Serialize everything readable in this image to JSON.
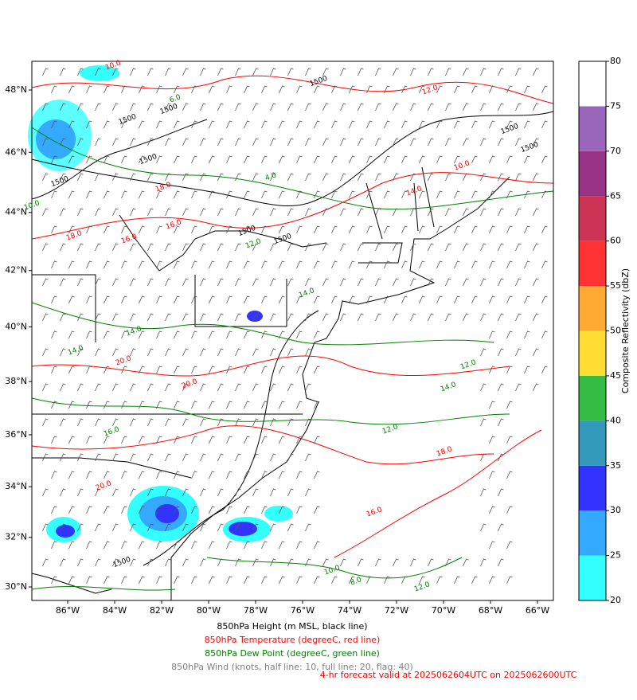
{
  "map": {
    "lon_ticks": [
      {
        "value": -86,
        "label": "86°W"
      },
      {
        "value": -84,
        "label": "84°W"
      },
      {
        "value": -82,
        "label": "82°W"
      },
      {
        "value": -80,
        "label": "80°W"
      },
      {
        "value": -78,
        "label": "78°W"
      },
      {
        "value": -76,
        "label": "76°W"
      },
      {
        "value": -74,
        "label": "74°W"
      },
      {
        "value": -72,
        "label": "72°W"
      },
      {
        "value": -70,
        "label": "70°W"
      },
      {
        "value": -68,
        "label": "68°W"
      },
      {
        "value": -66,
        "label": "66°W"
      }
    ],
    "lat_ticks": [
      {
        "value": 48,
        "label": "48°N"
      },
      {
        "value": 46,
        "label": "46°N"
      },
      {
        "value": 44,
        "label": "44°N"
      },
      {
        "value": 42,
        "label": "42°N"
      },
      {
        "value": 40,
        "label": "40°N"
      },
      {
        "value": 38,
        "label": "38°N"
      },
      {
        "value": 36,
        "label": "36°N"
      },
      {
        "value": 34,
        "label": "34°N"
      },
      {
        "value": 32,
        "label": "32°N"
      },
      {
        "value": 30,
        "label": "30°N"
      }
    ],
    "contour_labels": {
      "height": [
        "1500",
        "1500",
        "1500",
        "1500",
        "1500",
        "1500",
        "1500",
        "1500",
        "1500",
        "1500"
      ],
      "temperature": [
        "10.0",
        "12.0",
        "16.0",
        "18.0",
        "18.0",
        "16.0",
        "20.0",
        "20.0",
        "20.0",
        "18.0",
        "16.0",
        "14.0",
        "10.0"
      ],
      "dew_point": [
        "6.0",
        "4.0",
        "10.0",
        "14.0",
        "14.0",
        "12.0",
        "14.0",
        "16.0",
        "12.0",
        "14.0",
        "12.0",
        "10.0",
        "12.0",
        "8.0"
      ]
    }
  },
  "colorbar": {
    "label": "Composite Reflectivity (dbZ)",
    "lim": [
      20,
      80
    ],
    "ticks": [
      20,
      25,
      30,
      35,
      40,
      45,
      50,
      55,
      60,
      65,
      70,
      75,
      80
    ],
    "colors": [
      "#33ffff",
      "#33aaff",
      "#3333ff",
      "#3399bb",
      "#33bb44",
      "#ffdd33",
      "#ffaa33",
      "#ff3333",
      "#cc3355",
      "#993388",
      "#9966bb",
      "#ffffff"
    ]
  },
  "captions": [
    {
      "text": "850hPa Height (m MSL, black line)",
      "color": "#000000"
    },
    {
      "text": "850hPa Temperature (degreeC, red line)",
      "color": "#ff0000"
    },
    {
      "text": "850hPa Dew Point (degreeC, green line)",
      "color": "#008000"
    },
    {
      "text": "850hPa Wind (knots, half line: 10, full line: 20, flag: 40)",
      "color": "#808080"
    }
  ],
  "forecast": {
    "text": "4-hr forecast valid at 2025062604UTC on 2025062600UTC",
    "color": "#ff0000"
  }
}
